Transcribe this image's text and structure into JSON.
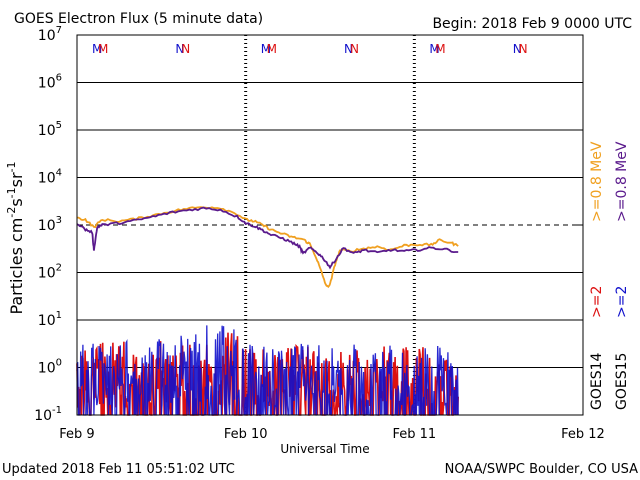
{
  "chart_data": {
    "type": "line",
    "title": "GOES Electron Flux (5 minute data)",
    "begin_label": "Begin: 2018 Feb 9 0000 UTC",
    "xlabel": "Universal Time",
    "ylabel_parts": [
      "Particles cm",
      "-2",
      "s",
      "-1",
      "sr",
      "-1"
    ],
    "x_ticks": [
      {
        "label": "Feb 9",
        "day": 0
      },
      {
        "label": "Feb 10",
        "day": 1
      },
      {
        "label": "Feb 11",
        "day": 2
      },
      {
        "label": "Feb 12",
        "day": 3
      }
    ],
    "xlim_days": [
      0,
      3
    ],
    "ylim_log10": [
      -1,
      7
    ],
    "y_ticks": [
      {
        "base": "10",
        "exp": "-1"
      },
      {
        "base": "10",
        "exp": "0"
      },
      {
        "base": "10",
        "exp": "1"
      },
      {
        "base": "10",
        "exp": "2"
      },
      {
        "base": "10",
        "exp": "3"
      },
      {
        "base": "10",
        "exp": "4"
      },
      {
        "base": "10",
        "exp": "5"
      },
      {
        "base": "10",
        "exp": "6"
      },
      {
        "base": "10",
        "exp": "7"
      }
    ],
    "alert_threshold": 1000,
    "midnight_markers": [
      {
        "day": 0.12,
        "label": "M",
        "color": "#1111cc"
      },
      {
        "day": 0.155,
        "label": "M",
        "color": "#dd1111"
      },
      {
        "day": 0.61,
        "label": "N",
        "color": "#1111cc"
      },
      {
        "day": 0.645,
        "label": "N",
        "color": "#dd1111"
      },
      {
        "day": 1.12,
        "label": "M",
        "color": "#1111cc"
      },
      {
        "day": 1.155,
        "label": "M",
        "color": "#dd1111"
      },
      {
        "day": 1.61,
        "label": "N",
        "color": "#1111cc"
      },
      {
        "day": 1.645,
        "label": "N",
        "color": "#dd1111"
      },
      {
        "day": 2.12,
        "label": "M",
        "color": "#1111cc"
      },
      {
        "day": 2.155,
        "label": "M",
        "color": "#dd1111"
      },
      {
        "day": 2.61,
        "label": "N",
        "color": "#1111cc"
      },
      {
        "day": 2.645,
        "label": "N",
        "color": "#dd1111"
      }
    ],
    "right_legend": [
      {
        "label": "GOES14",
        "color": "#000000"
      },
      {
        "label": ">=2",
        "color": "#dd1111"
      },
      {
        "label": ">=0.8 MeV",
        "color": "#f0a020"
      },
      {
        "label": "GOES15",
        "color": "#000000"
      },
      {
        "label": ">=2",
        "color": "#1111cc"
      },
      {
        "label": ">=0.8 MeV",
        "color": "#5a1a8c"
      }
    ],
    "series": [
      {
        "name": "GOES14 >=0.8 MeV",
        "color": "#f0a020",
        "points": [
          [
            0.0,
            1400
          ],
          [
            0.05,
            1300
          ],
          [
            0.1,
            900
          ],
          [
            0.15,
            1300
          ],
          [
            0.25,
            1200
          ],
          [
            0.35,
            1350
          ],
          [
            0.45,
            1600
          ],
          [
            0.55,
            1900
          ],
          [
            0.65,
            2200
          ],
          [
            0.75,
            2400
          ],
          [
            0.85,
            2300
          ],
          [
            0.95,
            1700
          ],
          [
            1.0,
            1300
          ],
          [
            1.05,
            1200
          ],
          [
            1.1,
            1000
          ],
          [
            1.15,
            800
          ],
          [
            1.22,
            650
          ],
          [
            1.28,
            550
          ],
          [
            1.34,
            500
          ],
          [
            1.38,
            400
          ],
          [
            1.42,
            200
          ],
          [
            1.45,
            100
          ],
          [
            1.48,
            50
          ],
          [
            1.5,
            55
          ],
          [
            1.53,
            150
          ],
          [
            1.56,
            300
          ],
          [
            1.62,
            280
          ],
          [
            1.7,
            320
          ],
          [
            1.78,
            350
          ],
          [
            1.86,
            300
          ],
          [
            1.94,
            370
          ],
          [
            2.02,
            390
          ],
          [
            2.1,
            380
          ],
          [
            2.15,
            480
          ],
          [
            2.22,
            420
          ],
          [
            2.26,
            360
          ]
        ]
      },
      {
        "name": "GOES15 >=0.8 MeV",
        "color": "#5a1a8c",
        "points": [
          [
            0.0,
            1100
          ],
          [
            0.05,
            800
          ],
          [
            0.09,
            700
          ],
          [
            0.1,
            300
          ],
          [
            0.12,
            900
          ],
          [
            0.15,
            1000
          ],
          [
            0.25,
            1100
          ],
          [
            0.35,
            1250
          ],
          [
            0.45,
            1500
          ],
          [
            0.55,
            1800
          ],
          [
            0.65,
            2050
          ],
          [
            0.75,
            2250
          ],
          [
            0.85,
            2100
          ],
          [
            0.95,
            1500
          ],
          [
            1.0,
            1100
          ],
          [
            1.05,
            950
          ],
          [
            1.1,
            780
          ],
          [
            1.15,
            620
          ],
          [
            1.22,
            520
          ],
          [
            1.28,
            420
          ],
          [
            1.32,
            350
          ],
          [
            1.34,
            250
          ],
          [
            1.38,
            330
          ],
          [
            1.42,
            270
          ],
          [
            1.46,
            200
          ],
          [
            1.5,
            130
          ],
          [
            1.53,
            180
          ],
          [
            1.58,
            330
          ],
          [
            1.64,
            250
          ],
          [
            1.7,
            300
          ],
          [
            1.78,
            260
          ],
          [
            1.86,
            300
          ],
          [
            1.94,
            280
          ],
          [
            2.02,
            300
          ],
          [
            2.1,
            330
          ],
          [
            2.18,
            310
          ],
          [
            2.26,
            270
          ]
        ]
      },
      {
        "name": "GOES14 >=2 MeV",
        "color": "#dd1111",
        "day_range": [
          0.0,
          2.26
        ],
        "envelope_log10": [
          [
            0.0,
            0.5
          ],
          [
            0.5,
            0.6
          ],
          [
            0.7,
            0.9
          ],
          [
            0.95,
            0.8
          ],
          [
            1.0,
            0.4
          ],
          [
            1.5,
            0.5
          ],
          [
            2.26,
            0.4
          ]
        ]
      },
      {
        "name": "GOES15 >=2 MeV",
        "color": "#1111cc",
        "day_range": [
          0.0,
          2.26
        ],
        "envelope_log10": [
          [
            0.0,
            0.5
          ],
          [
            0.5,
            0.6
          ],
          [
            0.7,
            0.95
          ],
          [
            0.95,
            0.85
          ],
          [
            1.0,
            0.5
          ],
          [
            1.5,
            0.5
          ],
          [
            2.26,
            0.45
          ]
        ]
      }
    ]
  },
  "footer": {
    "updated": "Updated 2018 Feb 11 05:51:02 UTC",
    "source": "NOAA/SWPC Boulder, CO USA"
  }
}
